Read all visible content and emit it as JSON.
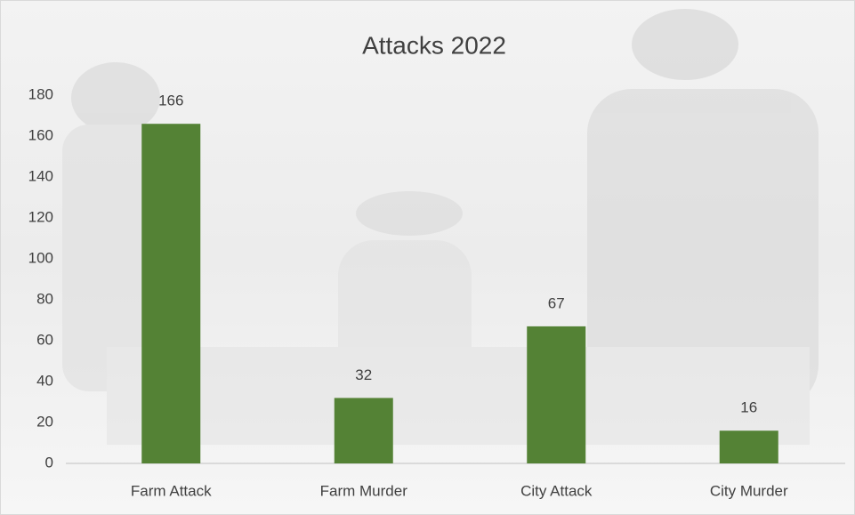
{
  "chart_data": {
    "type": "bar",
    "title": "Attacks 2022",
    "categories": [
      "Farm Attack",
      "Farm Murder",
      "City Attack",
      "City Murder"
    ],
    "values": [
      166,
      32,
      67,
      16
    ],
    "color": "#548235",
    "ylim": [
      0,
      180
    ],
    "yticks": [
      0,
      20,
      40,
      60,
      80,
      100,
      120,
      140,
      160,
      180
    ],
    "grid": false
  }
}
